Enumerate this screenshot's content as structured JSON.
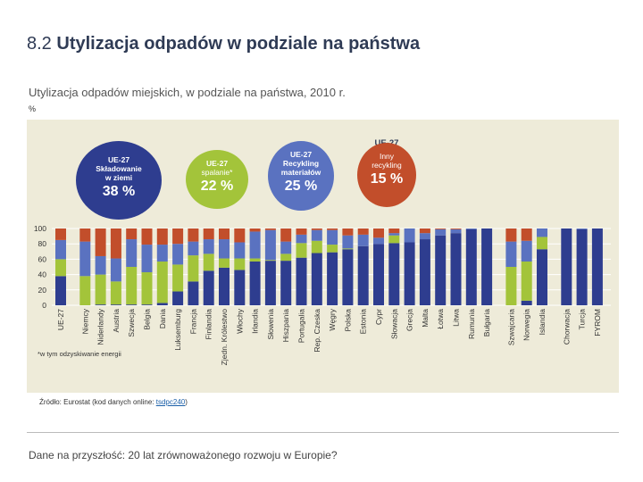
{
  "page": {
    "title_num": "8.2",
    "title_text": "Utylizacja odpadów w podziale na państwa",
    "subtitle": "Utylizacja odpadów miejskich, w podziale na państwa, 2010 r.",
    "unit": "%",
    "note": "*w tym odzyskiwanie energii",
    "source_prefix": "Źródło: Eurostat (kod danych online: ",
    "source_code": "tsdpc240",
    "source_suffix": ")",
    "footer": "Dane na przyszłość: 20 lat zrównoważonego rozwoju w Europie?"
  },
  "bubbles": {
    "landfill": {
      "line1": "UE-27",
      "line2": "Składowanie",
      "line3": "w ziemi",
      "value": "38 %"
    },
    "incineration": {
      "line1": "UE-27",
      "line2": "spalanie*",
      "value": "22 %"
    },
    "recycling": {
      "line1": "UE-27",
      "line2": "Recykling",
      "line3": "materiałów",
      "value": "25 %"
    },
    "other": {
      "line1": "UE-27",
      "line2": "Inny",
      "line3": "recykling",
      "value": "15 %"
    }
  },
  "colors": {
    "landfill": "#2e3d8f",
    "incineration": "#a3c43a",
    "recycling": "#5a72c0",
    "other": "#c24e2b",
    "panel": "#eeebd9"
  },
  "chart_data": {
    "type": "bar",
    "stacked": true,
    "ylim": [
      0,
      100
    ],
    "yticks": [
      0,
      20,
      40,
      60,
      80,
      100
    ],
    "ylabel": "%",
    "categories": [
      "UE-27",
      "Niemcy",
      "Niderlandy",
      "Austria",
      "Szwecja",
      "Belgia",
      "Dania",
      "Luksemburg",
      "Francja",
      "Finlandia",
      "Zjedn. Królestwo",
      "Włochy",
      "Irlandia",
      "Słowenia",
      "Hiszpania",
      "Portugalia",
      "Rep. Czeska",
      "Węgry",
      "Polska",
      "Estonia",
      "Cypr",
      "Słowacja",
      "Grecja",
      "Malta",
      "Łotwa",
      "Litwa",
      "Rumunia",
      "Bułgaria",
      "Szwajcaria",
      "Norwegia",
      "Islandia",
      "Chorwacja",
      "Turcja",
      "FYROM"
    ],
    "groups": [
      [
        0
      ],
      [
        1,
        27
      ],
      [
        28,
        30
      ],
      [
        31,
        33
      ]
    ],
    "series": [
      {
        "name": "Składowanie w ziemi",
        "color_key": "landfill",
        "values": [
          38,
          0,
          1,
          1,
          1,
          1,
          3,
          18,
          31,
          45,
          49,
          46,
          57,
          58,
          58,
          62,
          68,
          69,
          73,
          77,
          80,
          81,
          82,
          86,
          91,
          94,
          99,
          100,
          0,
          6,
          73,
          100,
          99,
          100
        ]
      },
      {
        "name": "Spalanie*",
        "color_key": "incineration",
        "values": [
          22,
          38,
          39,
          30,
          49,
          42,
          54,
          35,
          34,
          22,
          12,
          15,
          4,
          1,
          9,
          19,
          16,
          10,
          1,
          0,
          0,
          10,
          0,
          0,
          0,
          0,
          0,
          0,
          50,
          51,
          16,
          0,
          0,
          0
        ]
      },
      {
        "name": "Recykling materiałów",
        "color_key": "recycling",
        "values": [
          25,
          45,
          24,
          30,
          36,
          36,
          22,
          27,
          18,
          19,
          25,
          21,
          35,
          39,
          16,
          11,
          14,
          19,
          17,
          15,
          8,
          3,
          18,
          8,
          8,
          5,
          1,
          0,
          33,
          27,
          11,
          0,
          1,
          0
        ]
      },
      {
        "name": "Inny recykling",
        "color_key": "other",
        "values": [
          15,
          17,
          36,
          39,
          14,
          21,
          21,
          20,
          17,
          14,
          14,
          18,
          4,
          2,
          17,
          8,
          2,
          2,
          9,
          8,
          12,
          6,
          0,
          6,
          1,
          1,
          0,
          0,
          17,
          16,
          0,
          0,
          0,
          0
        ]
      }
    ]
  }
}
